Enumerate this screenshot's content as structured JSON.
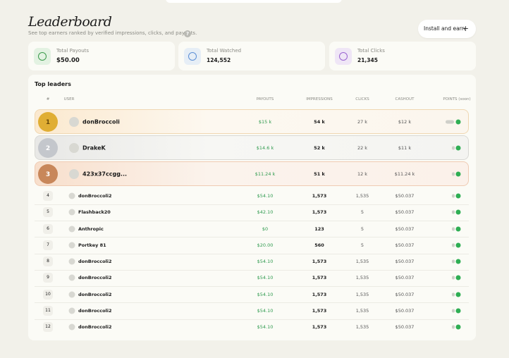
{
  "header": {
    "title": "Leaderboard",
    "subtitle": "See top earners ranked by verified impressions, clicks, and payouts.",
    "help": "?",
    "button": "Install and earn",
    "button_icon": "+"
  },
  "stats": [
    {
      "label": "Total Payouts",
      "value": "$50.00"
    },
    {
      "label": "Total Watched",
      "value": "124,552"
    },
    {
      "label": "Total Clicks",
      "value": "21,345"
    }
  ],
  "table": {
    "title": "Top leaders",
    "columns": [
      "#",
      "USER",
      "PAYOUTS",
      "IMPRESSIONS",
      "CLICKS",
      "CASHOUT",
      "POINTS (soon)"
    ],
    "rows": [
      [
        "1",
        "donBroccoli",
        "$15 k",
        "54 k",
        "27 k",
        "$12 k"
      ],
      [
        "2",
        "DrakeK",
        "$14.6 k",
        "52 k",
        "22 k",
        "$11 k"
      ],
      [
        "3",
        "423x37ccgg...",
        "$11.24 k",
        "51 k",
        "12 k",
        "$11.24 k"
      ],
      [
        "4",
        "donBroccoli2",
        "$54.10",
        "1,573",
        "1,535",
        "$50.037"
      ],
      [
        "5",
        "Flashback20",
        "$42.10",
        "1,573",
        "5",
        "$50.037"
      ],
      [
        "6",
        "Anthropic",
        "$0",
        "123",
        "5",
        "$50.037"
      ],
      [
        "7",
        "Portkey 81",
        "$20.00",
        "560",
        "5",
        "$50.037"
      ],
      [
        "8",
        "donBroccoli2",
        "$54.10",
        "1,573",
        "1,535",
        "$50.037"
      ],
      [
        "9",
        "donBroccoli2",
        "$54.10",
        "1,573",
        "1,535",
        "$50.037"
      ],
      [
        "10",
        "donBroccoli2",
        "$54.10",
        "1,573",
        "1,535",
        "$50.037"
      ],
      [
        "11",
        "donBroccoli2",
        "$54.10",
        "1,573",
        "1,535",
        "$50.037"
      ],
      [
        "12",
        "donBroccoli2",
        "$54.10",
        "1,573",
        "1,535",
        "$50.037"
      ]
    ]
  }
}
